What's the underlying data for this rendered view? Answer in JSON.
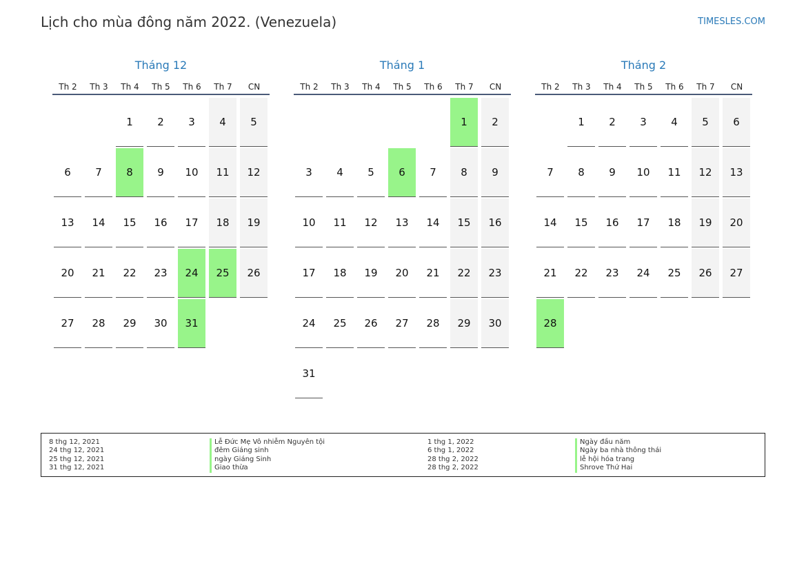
{
  "header": {
    "title": "Lịch cho mùa đông năm 2022. (Venezuela)",
    "site": "TIMESLES.COM"
  },
  "colors": {
    "accent": "#2a7ab8",
    "holiday": "#98f48a",
    "weekend": "#f3f3f3",
    "rule": "#4a5a78"
  },
  "weekdays": [
    "Th 2",
    "Th 3",
    "Th 4",
    "Th 5",
    "Th 6",
    "Th 7",
    "CN"
  ],
  "months": [
    {
      "title": "Tháng 12",
      "offset": 2,
      "days": 31,
      "holidays": [
        8,
        24,
        25,
        31
      ]
    },
    {
      "title": "Tháng 1",
      "offset": 5,
      "days": 31,
      "holidays": [
        1,
        6
      ]
    },
    {
      "title": "Tháng 2",
      "offset": 1,
      "days": 28,
      "holidays": [
        28
      ]
    }
  ],
  "legend": {
    "left": [
      {
        "date": "8 thg 12, 2021",
        "name": "Lễ Đức Mẹ Vô nhiễm Nguyên tội"
      },
      {
        "date": "24 thg 12, 2021",
        "name": "đêm Giáng sinh"
      },
      {
        "date": "25 thg 12, 2021",
        "name": "ngày Giáng Sinh"
      },
      {
        "date": "31 thg 12, 2021",
        "name": "Giao thừa"
      }
    ],
    "right": [
      {
        "date": "1 thg 1, 2022",
        "name": "Ngày đầu năm"
      },
      {
        "date": "6 thg 1, 2022",
        "name": "Ngày ba nhà thông thái"
      },
      {
        "date": "28 thg 2, 2022",
        "name": "lễ hội hóa trang"
      },
      {
        "date": "28 thg 2, 2022",
        "name": "Shrove Thứ Hai"
      }
    ]
  }
}
